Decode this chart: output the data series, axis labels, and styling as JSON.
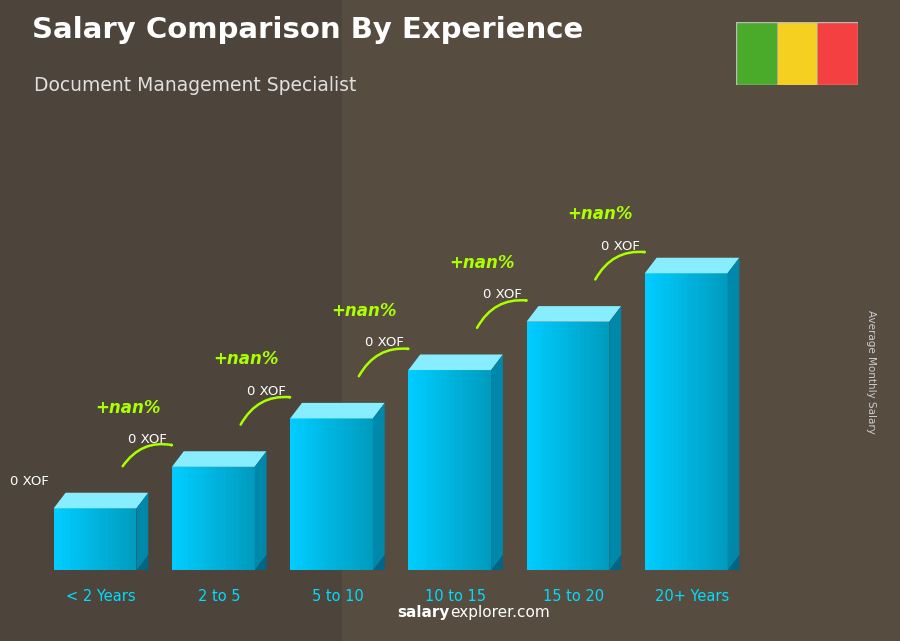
{
  "title": "Salary Comparison By Experience",
  "subtitle": "Document Management Specialist",
  "categories": [
    "< 2 Years",
    "2 to 5",
    "5 to 10",
    "10 to 15",
    "15 to 20",
    "20+ Years"
  ],
  "values": [
    0.18,
    0.3,
    0.44,
    0.58,
    0.72,
    0.86
  ],
  "bar_color_front": "#00bfdf",
  "bar_color_light": "#55ddff",
  "bar_color_dark": "#0088aa",
  "bar_color_top": "#88eeff",
  "bar_labels": [
    "0 XOF",
    "0 XOF",
    "0 XOF",
    "0 XOF",
    "0 XOF",
    "0 XOF"
  ],
  "increase_labels": [
    "+nan%",
    "+nan%",
    "+nan%",
    "+nan%",
    "+nan%"
  ],
  "bg_color": "#7a7060",
  "title_color": "#ffffff",
  "subtitle_color": "#e0e0e0",
  "bar_label_color": "#ffffff",
  "increase_color": "#aaff00",
  "xlabel_color": "#00ddff",
  "ylabel_text": "Average Monthly Salary",
  "ylabel_color": "#cccccc",
  "watermark_bold": "salary",
  "watermark_normal": "explorer.com",
  "flag_colors": [
    "#4aab2a",
    "#f5d020",
    "#f44040"
  ],
  "flag_border": "#aaaaaa"
}
